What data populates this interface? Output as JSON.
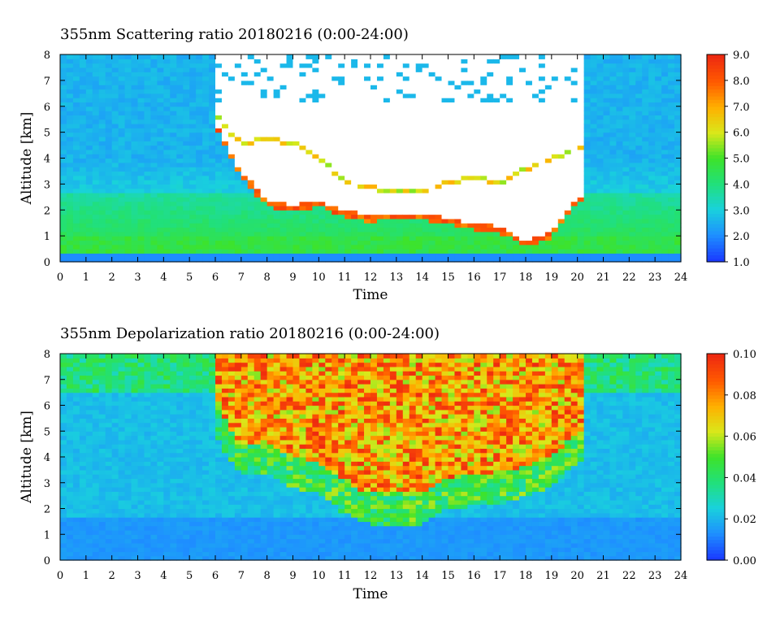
{
  "chart_data": [
    {
      "type": "heatmap",
      "title": "355nm Scattering ratio  20180216 (0:00-24:00)",
      "xlabel": "Time",
      "ylabel": "Altitude [km]",
      "xlim": [
        0,
        24
      ],
      "ylim": [
        0,
        8
      ],
      "x_ticks": [
        "0",
        "1",
        "2",
        "3",
        "4",
        "5",
        "6",
        "7",
        "8",
        "9",
        "10",
        "11",
        "12",
        "13",
        "14",
        "15",
        "16",
        "17",
        "18",
        "19",
        "20",
        "21",
        "22",
        "23",
        "24"
      ],
      "y_ticks": [
        "0",
        "1",
        "2",
        "3",
        "4",
        "5",
        "6",
        "7",
        "8"
      ],
      "colorbar": {
        "range": [
          1.0,
          9.0
        ],
        "ticks": [
          "1.0",
          "2.0",
          "3.0",
          "4.0",
          "5.0",
          "6.0",
          "7.0",
          "8.0",
          "9.0"
        ],
        "colors": [
          "#1a3cff",
          "#1e90ff",
          "#19d2dc",
          "#21e07a",
          "#3ee32a",
          "#d9e81a",
          "#ffb000",
          "#ff5a00",
          "#ee2a10"
        ]
      },
      "cloud_top_km": [
        [
          6.0,
          5.6
        ],
        [
          7.0,
          4.5
        ],
        [
          8.0,
          4.7
        ],
        [
          9.0,
          4.5
        ],
        [
          10.0,
          4.0
        ],
        [
          11.0,
          3.0
        ],
        [
          12.0,
          2.8
        ],
        [
          13.0,
          2.6
        ],
        [
          14.0,
          2.6
        ],
        [
          15.0,
          3.0
        ],
        [
          16.0,
          3.2
        ],
        [
          17.0,
          3.0
        ],
        [
          18.0,
          3.5
        ],
        [
          19.0,
          3.9
        ],
        [
          20.0,
          4.3
        ]
      ],
      "cloud_base_km": [
        [
          6.0,
          5.5
        ],
        [
          7.0,
          3.5
        ],
        [
          8.0,
          2.4
        ],
        [
          9.0,
          2.2
        ],
        [
          10.0,
          2.4
        ],
        [
          11.0,
          2.0
        ],
        [
          12.0,
          1.8
        ],
        [
          13.0,
          1.9
        ],
        [
          14.0,
          1.9
        ],
        [
          15.0,
          1.7
        ],
        [
          16.0,
          1.5
        ],
        [
          17.0,
          1.4
        ],
        [
          18.0,
          0.8
        ],
        [
          19.0,
          1.2
        ],
        [
          20.0,
          2.5
        ]
      ],
      "boundary_layer_top_km": 1.0
    },
    {
      "type": "heatmap",
      "title": "355nm Depolarization ratio  20180216 (0:00-24:00)",
      "xlabel": "Time",
      "ylabel": "Altitude [km]",
      "xlim": [
        0,
        24
      ],
      "ylim": [
        0,
        8
      ],
      "x_ticks": [
        "0",
        "1",
        "2",
        "3",
        "4",
        "5",
        "6",
        "7",
        "8",
        "9",
        "10",
        "11",
        "12",
        "13",
        "14",
        "15",
        "16",
        "17",
        "18",
        "19",
        "20",
        "21",
        "22",
        "23",
        "24"
      ],
      "y_ticks": [
        "0",
        "1",
        "2",
        "3",
        "4",
        "5",
        "6",
        "7",
        "8"
      ],
      "colorbar": {
        "range": [
          0.0,
          0.1
        ],
        "ticks": [
          "0.00",
          "0.02",
          "0.04",
          "0.06",
          "0.08",
          "0.10"
        ],
        "colors": [
          "#1a3cff",
          "#1e90ff",
          "#19d2dc",
          "#21e07a",
          "#3ee32a",
          "#d9e81a",
          "#ffb000",
          "#ff5a00",
          "#ee2a10"
        ]
      },
      "high_depol_region_top_km": 8.0,
      "high_depol_region_base_km": [
        [
          6.0,
          6.0
        ],
        [
          7.0,
          4.5
        ],
        [
          8.0,
          4.6
        ],
        [
          9.0,
          4.0
        ],
        [
          10.0,
          3.8
        ],
        [
          11.0,
          3.0
        ],
        [
          12.0,
          2.6
        ],
        [
          13.0,
          2.6
        ],
        [
          14.0,
          2.6
        ],
        [
          15.0,
          3.2
        ],
        [
          16.0,
          3.3
        ],
        [
          17.0,
          3.3
        ],
        [
          18.0,
          3.7
        ],
        [
          19.0,
          4.0
        ],
        [
          20.0,
          5.0
        ]
      ]
    }
  ]
}
